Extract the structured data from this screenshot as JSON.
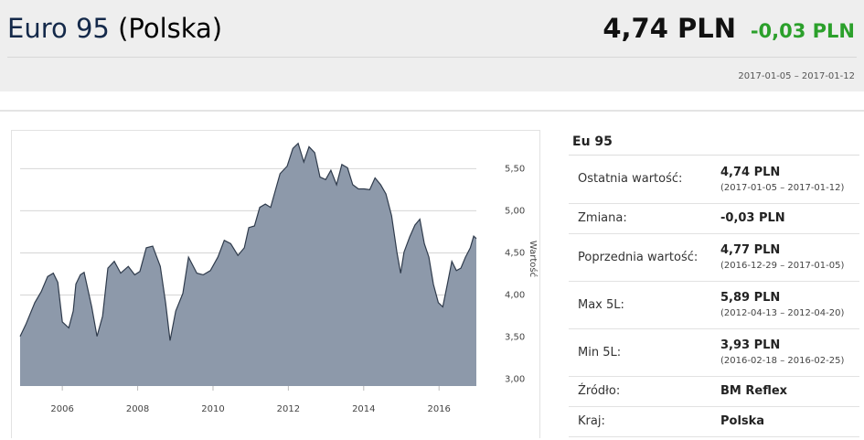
{
  "header": {
    "name": "Euro 95",
    "country": "(Polska)",
    "price": "4,74 PLN",
    "change": "-0,03 PLN",
    "date_range": "2017-01-05 – 2017-01-12"
  },
  "chart_data": {
    "type": "area",
    "y_axis_label": "Wartość",
    "color": "#8d99aa",
    "line_color": "#2f3b4c",
    "grid": true,
    "xlim": [
      2004.88,
      2016.99
    ],
    "xticks": [
      2006,
      2008,
      2010,
      2012,
      2014,
      2016
    ],
    "ylim": [
      2.92,
      5.96
    ],
    "yticks": [
      {
        "value": 3.0,
        "label": "3,00"
      },
      {
        "value": 3.5,
        "label": "3,50"
      },
      {
        "value": 4.0,
        "label": "4,00"
      },
      {
        "value": 4.5,
        "label": "4,50"
      },
      {
        "value": 5.0,
        "label": "5,00"
      },
      {
        "value": 5.5,
        "label": "5,50"
      }
    ],
    "x": [
      2004.88,
      2005.03,
      2005.27,
      2005.44,
      2005.61,
      2005.76,
      2005.88,
      2006.0,
      2006.17,
      2006.29,
      2006.36,
      2006.48,
      2006.58,
      2006.78,
      2006.92,
      2007.07,
      2007.21,
      2007.38,
      2007.55,
      2007.75,
      2007.92,
      2008.06,
      2008.23,
      2008.4,
      2008.6,
      2008.74,
      2008.86,
      2009.01,
      2009.2,
      2009.35,
      2009.57,
      2009.74,
      2009.93,
      2010.13,
      2010.3,
      2010.47,
      2010.66,
      2010.83,
      2010.95,
      2011.1,
      2011.24,
      2011.39,
      2011.53,
      2011.63,
      2011.78,
      2011.97,
      2012.12,
      2012.26,
      2012.41,
      2012.55,
      2012.7,
      2012.84,
      2012.99,
      2013.13,
      2013.28,
      2013.42,
      2013.57,
      2013.71,
      2013.86,
      2014.01,
      2014.16,
      2014.3,
      2014.45,
      2014.59,
      2014.74,
      2014.88,
      2014.98,
      2015.07,
      2015.22,
      2015.36,
      2015.49,
      2015.61,
      2015.73,
      2015.85,
      2015.98,
      2016.1,
      2016.22,
      2016.34,
      2016.46,
      2016.58,
      2016.7,
      2016.83,
      2016.92,
      2016.99
    ],
    "y": [
      3.51,
      3.65,
      3.91,
      4.04,
      4.22,
      4.26,
      4.15,
      3.68,
      3.61,
      3.81,
      4.13,
      4.24,
      4.27,
      3.86,
      3.51,
      3.75,
      4.32,
      4.4,
      4.26,
      4.34,
      4.24,
      4.28,
      4.56,
      4.58,
      4.34,
      3.91,
      3.46,
      3.81,
      4.02,
      4.45,
      4.26,
      4.24,
      4.29,
      4.45,
      4.65,
      4.61,
      4.47,
      4.56,
      4.8,
      4.82,
      5.04,
      5.08,
      5.04,
      5.2,
      5.44,
      5.53,
      5.74,
      5.8,
      5.58,
      5.76,
      5.69,
      5.4,
      5.37,
      5.48,
      5.31,
      5.55,
      5.51,
      5.31,
      5.26,
      5.26,
      5.25,
      5.39,
      5.31,
      5.2,
      4.94,
      4.51,
      4.26,
      4.51,
      4.69,
      4.83,
      4.9,
      4.61,
      4.45,
      4.13,
      3.91,
      3.86,
      4.13,
      4.4,
      4.29,
      4.32,
      4.45,
      4.56,
      4.7,
      4.67
    ]
  },
  "table": {
    "title": "Eu 95",
    "rows": [
      {
        "label": "Ostatnia wartość:",
        "value": "4,74 PLN",
        "note": "(2017-01-05 – 2017-01-12)"
      },
      {
        "label": "Zmiana:",
        "value": "-0,03 PLN"
      },
      {
        "label": "Poprzednia wartość:",
        "value": "4,77 PLN",
        "note": "(2016-12-29 – 2017-01-05)"
      },
      {
        "label": "Max 5L:",
        "value": "5,89 PLN",
        "note": "(2012-04-13 – 2012-04-20)"
      },
      {
        "label": "Min 5L:",
        "value": "3,93 PLN",
        "note": "(2016-02-18 – 2016-02-25)"
      },
      {
        "label": "Źródło:",
        "value": "BM Reflex"
      },
      {
        "label": "Kraj:",
        "value": "Polska"
      }
    ]
  }
}
